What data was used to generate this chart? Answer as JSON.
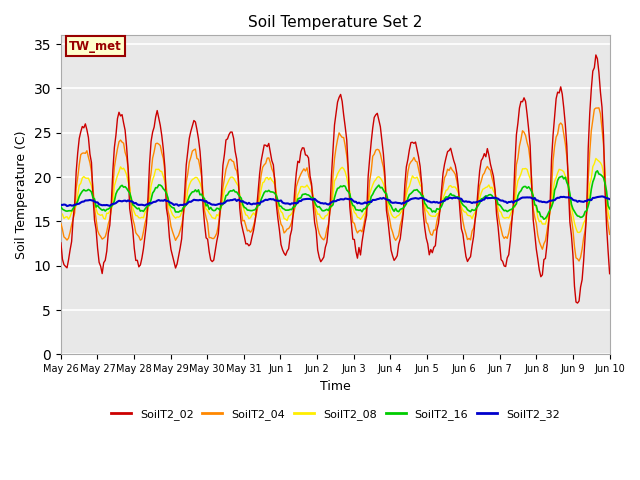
{
  "title": "Soil Temperature Set 2",
  "xlabel": "Time",
  "ylabel": "Soil Temperature (C)",
  "ylim": [
    0,
    36
  ],
  "yticks": [
    0,
    5,
    10,
    15,
    20,
    25,
    30,
    35
  ],
  "colors": {
    "SoilT2_02": "#cc0000",
    "SoilT2_04": "#ff8800",
    "SoilT2_08": "#ffee00",
    "SoilT2_16": "#00cc00",
    "SoilT2_32": "#0000cc"
  },
  "annotation_text": "TW_met",
  "annotation_bg": "#ffffcc",
  "annotation_border": "#990000",
  "plot_bg": "#e8e8e8",
  "tick_labels": [
    "May 26",
    "May 27",
    "May 28",
    "May 29",
    "May 30",
    "May 31",
    "Jun 1",
    "Jun 2",
    "Jun 3",
    "Jun 4",
    "Jun 5",
    "Jun 6",
    "Jun 7",
    "Jun 8",
    "Jun 9",
    "Jun 10"
  ],
  "legend_labels": [
    "SoilT2_02",
    "SoilT2_04",
    "SoilT2_08",
    "SoilT2_16",
    "SoilT2_32"
  ]
}
